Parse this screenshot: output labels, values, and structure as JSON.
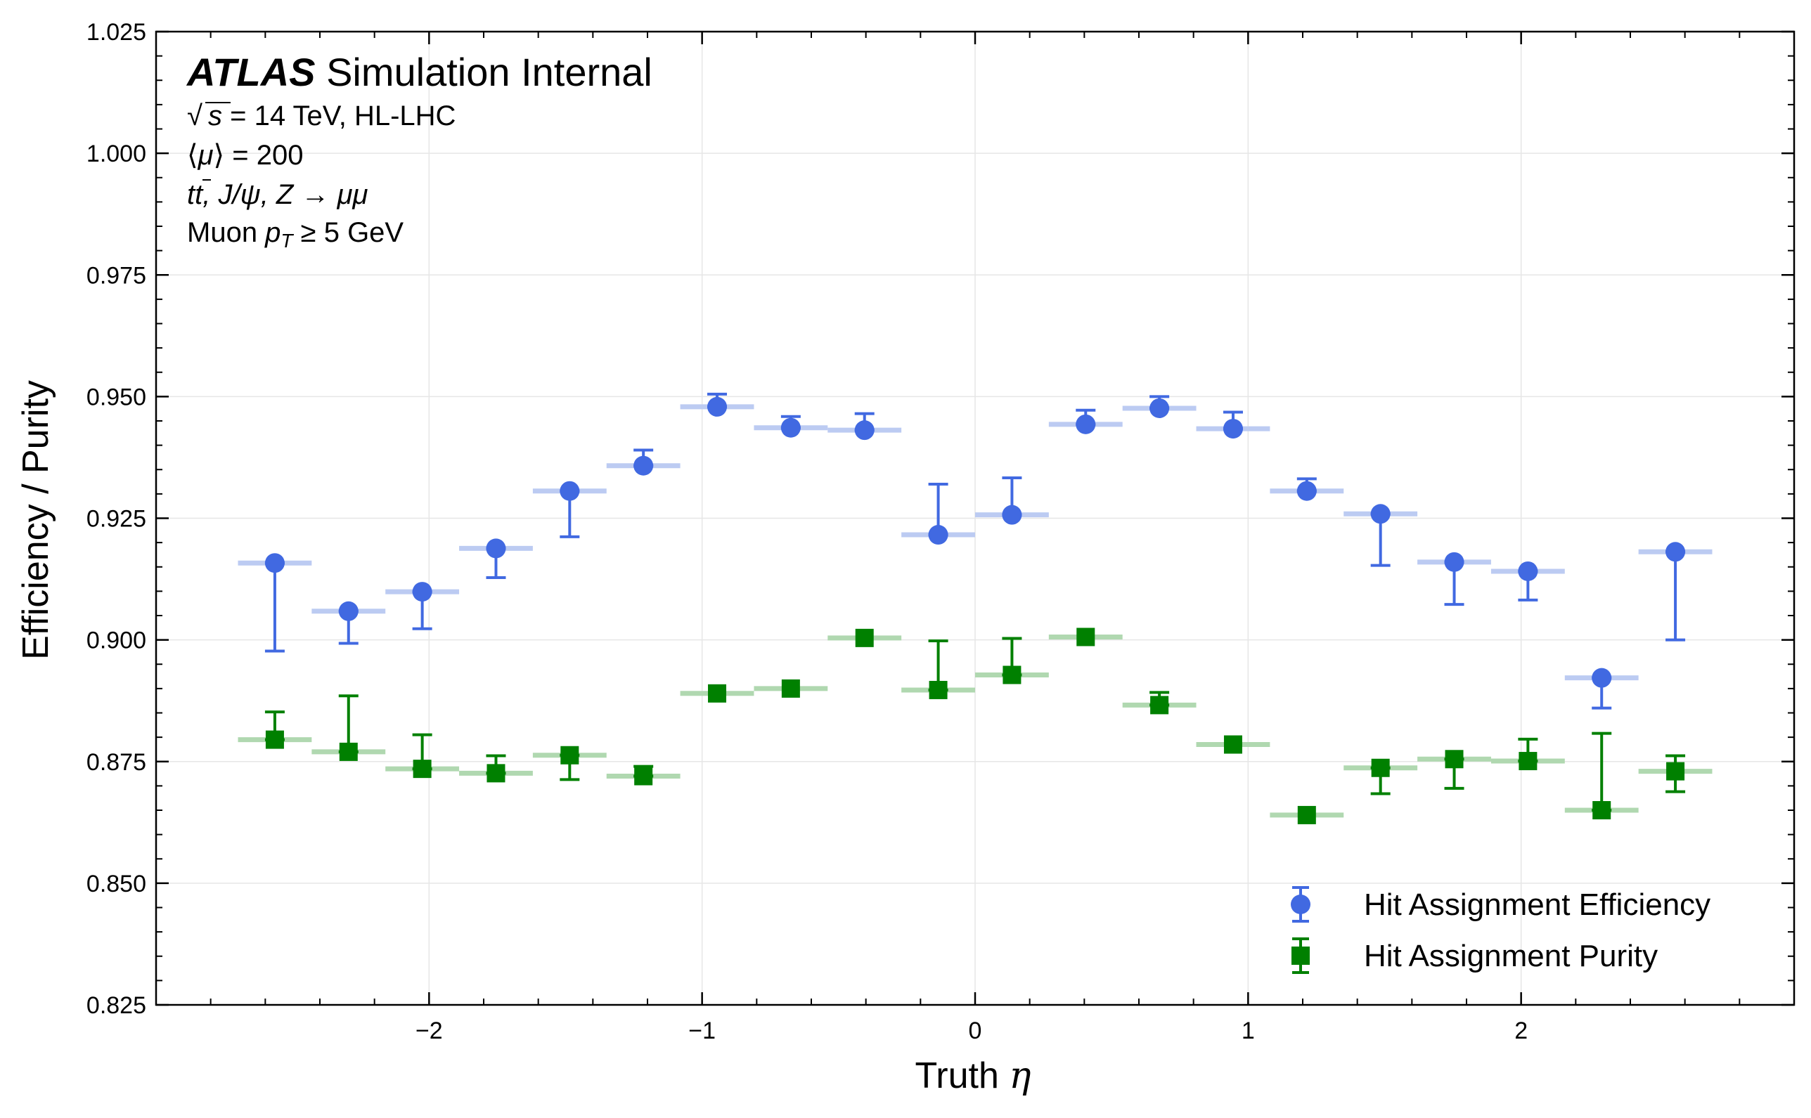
{
  "chart_data": {
    "type": "scatter",
    "xlabel": "Truth",
    "xlabel_symbol": "η",
    "ylabel": "Efficiency / Purity",
    "xlim": [
      -3.0,
      3.0
    ],
    "ylim": [
      0.825,
      1.025
    ],
    "xticks": [
      -2,
      -1,
      0,
      1,
      2
    ],
    "xtick_labels": [
      "−2",
      "−1",
      "0",
      "1",
      "2"
    ],
    "yticks": [
      0.825,
      0.85,
      0.875,
      0.9,
      0.925,
      0.95,
      0.975,
      1.0,
      1.025
    ],
    "ytick_labels": [
      "0.825",
      "0.850",
      "0.875",
      "0.900",
      "0.925",
      "0.950",
      "0.975",
      "1.000",
      "1.025"
    ],
    "grid": true,
    "legend_position": "lower-right",
    "annotations": {
      "experiment": "ATLAS",
      "status": "Simulation Internal",
      "energy_sqrt": "s",
      "energy_rest": " = 14 TeV, HL-LHC",
      "pileup_open": "⟨",
      "pileup_mu": "μ",
      "pileup_rest": "⟩ = 200",
      "process_t1": "t",
      "process_t2": "t",
      "process_rest": ", J/ψ, Z → μμ",
      "cut_prefix": "Muon ",
      "cut_p": "p",
      "cut_sub": "T",
      "cut_rest": " ≥ 5 GeV"
    },
    "bins": [
      -2.7,
      -2.43,
      -2.16,
      -1.89,
      -1.62,
      -1.35,
      -1.08,
      -0.81,
      -0.54,
      -0.27,
      0.0,
      0.27,
      0.54,
      0.81,
      1.08,
      1.35,
      1.62,
      1.89,
      2.16,
      2.43,
      2.7
    ],
    "series": [
      {
        "name": "Hit Assignment Efficiency",
        "color": "#4169E1",
        "band_color": "#BCCBF2",
        "marker": "circle",
        "x": [
          -2.565,
          -2.295,
          -2.025,
          -1.755,
          -1.485,
          -1.215,
          -0.945,
          -0.675,
          -0.405,
          -0.135,
          0.135,
          0.405,
          0.675,
          0.945,
          1.215,
          1.485,
          1.755,
          2.025,
          2.295,
          2.565
        ],
        "y": [
          0.9158,
          0.9059,
          0.9099,
          0.9188,
          0.9306,
          0.9358,
          0.9479,
          0.9436,
          0.9431,
          0.9216,
          0.9257,
          0.9443,
          0.9476,
          0.9434,
          0.9306,
          0.9259,
          0.916,
          0.9141,
          0.8922,
          0.9181
        ],
        "y_low": [
          0.8977,
          0.8993,
          0.9023,
          0.9128,
          0.9212,
          0.9358,
          0.9479,
          0.9436,
          0.9431,
          0.9216,
          0.9257,
          0.9443,
          0.9476,
          0.9434,
          0.9306,
          0.9153,
          0.9073,
          0.9082,
          0.886,
          0.9
        ],
        "y_high": [
          0.9158,
          0.9059,
          0.9099,
          0.9188,
          0.9306,
          0.939,
          0.9505,
          0.9459,
          0.9465,
          0.932,
          0.9333,
          0.9472,
          0.95,
          0.9468,
          0.9331,
          0.9259,
          0.916,
          0.9141,
          0.8922,
          0.9181
        ]
      },
      {
        "name": "Hit Assignment Purity",
        "color": "#008000",
        "band_color": "#B0D8B0",
        "marker": "square",
        "x": [
          -2.565,
          -2.295,
          -2.025,
          -1.755,
          -1.485,
          -1.215,
          -0.945,
          -0.675,
          -0.405,
          -0.135,
          0.135,
          0.405,
          0.675,
          0.945,
          1.215,
          1.485,
          1.755,
          2.025,
          2.295,
          2.565
        ],
        "y": [
          0.8795,
          0.877,
          0.8735,
          0.8726,
          0.8763,
          0.872,
          0.889,
          0.89,
          0.9004,
          0.8897,
          0.8928,
          0.9006,
          0.8866,
          0.8785,
          0.864,
          0.8737,
          0.8755,
          0.8751,
          0.865,
          0.873
        ],
        "y_low": [
          0.8795,
          0.877,
          0.8735,
          0.8726,
          0.8713,
          0.872,
          0.889,
          0.89,
          0.9004,
          0.8897,
          0.8928,
          0.9006,
          0.8866,
          0.8785,
          0.864,
          0.8684,
          0.8695,
          0.8751,
          0.865,
          0.8688
        ],
        "y_high": [
          0.8852,
          0.8885,
          0.8805,
          0.8762,
          0.8763,
          0.874,
          0.889,
          0.89,
          0.9004,
          0.8998,
          0.9003,
          0.9006,
          0.8892,
          0.8785,
          0.864,
          0.8737,
          0.8755,
          0.8796,
          0.8808,
          0.8762
        ]
      }
    ]
  }
}
